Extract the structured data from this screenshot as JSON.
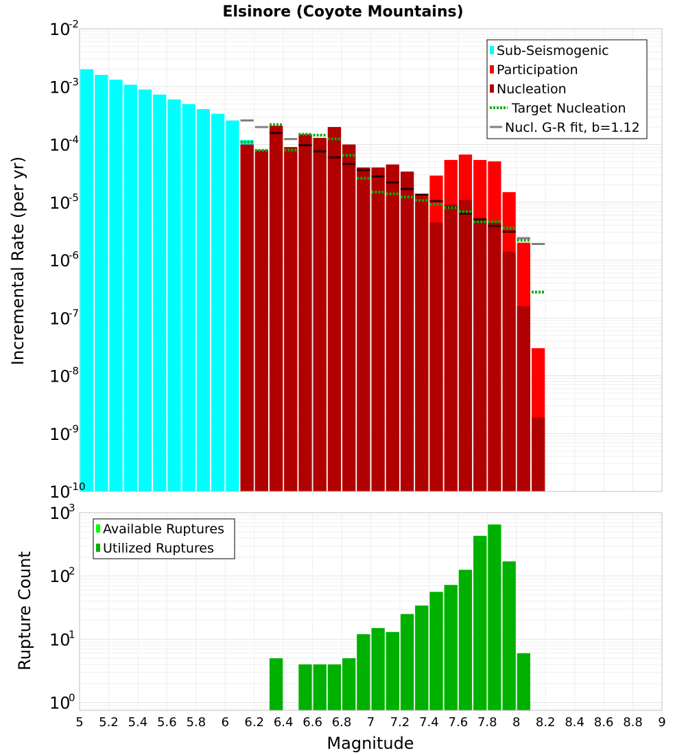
{
  "chart_data": [
    {
      "type": "bar",
      "title": "Elsinore (Coyote Mountains)",
      "xlabel": "",
      "ylabel": "Incremental Rate (per yr)",
      "xlim": [
        5,
        9
      ],
      "ylim": [
        1e-10,
        0.01
      ],
      "yscale": "log",
      "bin_width": 0.1,
      "y_ticks": [
        {
          "base": "10",
          "exp": "-10",
          "value": 1e-10
        },
        {
          "base": "10",
          "exp": "-9",
          "value": 1e-09
        },
        {
          "base": "10",
          "exp": "-8",
          "value": 1e-08
        },
        {
          "base": "10",
          "exp": "-7",
          "value": 1e-07
        },
        {
          "base": "10",
          "exp": "-6",
          "value": 1e-06
        },
        {
          "base": "10",
          "exp": "-5",
          "value": 1e-05
        },
        {
          "base": "10",
          "exp": "-4",
          "value": 0.0001
        },
        {
          "base": "10",
          "exp": "-3",
          "value": 0.001
        },
        {
          "base": "10",
          "exp": "-2",
          "value": 0.01
        }
      ],
      "legend": {
        "placement": "top-right",
        "entries": [
          {
            "label": "Sub-Seismogenic",
            "color": "#00FFFF",
            "style": "bar"
          },
          {
            "label": "Participation",
            "color": "#FF0000",
            "style": "bar"
          },
          {
            "label": "Nucleation",
            "color": "#B00000",
            "style": "bar"
          },
          {
            "label": "Target Nucleation",
            "color": "#00B000",
            "style": "dotted"
          },
          {
            "label": "Nucl. G-R fit, b=1.12",
            "color": "#808080",
            "style": "line"
          }
        ]
      },
      "series": [
        {
          "name": "Sub-Seismogenic",
          "color": "#00FFFF",
          "x": [
            5.05,
            5.15,
            5.25,
            5.35,
            5.45,
            5.55,
            5.65,
            5.75,
            5.85,
            5.95,
            6.05,
            6.15
          ],
          "values": [
            0.002,
            0.0016,
            0.00132,
            0.00108,
            0.00089,
            0.00073,
            0.0006,
            0.0005,
            0.00041,
            0.00034,
            0.00026,
            0.00012
          ]
        },
        {
          "name": "Participation",
          "color": "#FF0000",
          "x": [
            6.15,
            6.25,
            6.35,
            6.45,
            6.55,
            6.65,
            6.75,
            6.85,
            6.95,
            7.05,
            7.15,
            7.25,
            7.35,
            7.45,
            7.55,
            7.65,
            7.75,
            7.85,
            7.95,
            8.05,
            8.15
          ],
          "values": [
            0.0001,
            8e-05,
            0.00021,
            9e-05,
            0.00015,
            0.00013,
            0.0002,
            0.0001,
            4e-05,
            4e-05,
            4.5e-05,
            3.4e-05,
            1.4e-05,
            2.9e-05,
            5.4e-05,
            6.7e-05,
            5.4e-05,
            5.1e-05,
            1.5e-05,
            2e-06,
            3e-08
          ]
        },
        {
          "name": "Nucleation",
          "color": "#B00000",
          "x": [
            6.15,
            6.25,
            6.35,
            6.45,
            6.55,
            6.65,
            6.75,
            6.85,
            6.95,
            7.05,
            7.15,
            7.25,
            7.35,
            7.45,
            7.55,
            7.65,
            7.75,
            7.85,
            7.95,
            8.05,
            8.15
          ],
          "values": [
            0.0001,
            8e-05,
            0.00021,
            9e-05,
            0.00015,
            0.00013,
            0.0002,
            0.0001,
            4e-05,
            4e-05,
            4.5e-05,
            3.4e-05,
            1.25e-05,
            4.5e-06,
            9.2e-06,
            1.1e-05,
            5.4e-06,
            4.5e-06,
            1.4e-06,
            1.6e-07,
            1.9e-09
          ]
        },
        {
          "name": "Target Nucleation",
          "color": "#00B000",
          "style": "dotted",
          "x": [
            6.15,
            6.25,
            6.35,
            6.45,
            6.55,
            6.65,
            6.75,
            6.85,
            6.95,
            7.05,
            7.15,
            7.25,
            7.35,
            7.45,
            7.55,
            7.65,
            7.75,
            7.85,
            7.95,
            8.05,
            8.15
          ],
          "values": [
            0.00011,
            7.9e-05,
            0.00022,
            8e-05,
            0.00015,
            0.000145,
            0.000125,
            6.5e-05,
            2.6e-05,
            1.5e-05,
            1.4e-05,
            1.23e-05,
            1.08e-05,
            9.2e-06,
            8.1e-06,
            6.9e-06,
            4.6e-06,
            4.6e-06,
            3.6e-06,
            2.2e-06,
            2.8e-07
          ]
        },
        {
          "name": "Nucl. G-R fit, b=1.12",
          "color": "#808080",
          "style": "line",
          "x": [
            6.15,
            6.25,
            6.35,
            6.45,
            6.55,
            6.65,
            6.75,
            6.85,
            6.95,
            7.05,
            7.15,
            7.25,
            7.35,
            7.45,
            7.55,
            7.65,
            7.75,
            7.85,
            7.95,
            8.05,
            8.15
          ],
          "values": [
            0.00026,
            0.0002,
            0.000158,
            0.000124,
            9.7e-05,
            7.6e-05,
            6e-05,
            4.6e-05,
            3.6e-05,
            2.8e-05,
            2.2e-05,
            1.7e-05,
            1.35e-05,
            1.05e-05,
            8.2e-06,
            6.4e-06,
            5e-06,
            3.9e-06,
            3.1e-06,
            2.4e-06,
            1.9e-06
          ]
        }
      ]
    },
    {
      "type": "bar",
      "title": "",
      "xlabel": "Magnitude",
      "ylabel": "Rupture Count",
      "xlim": [
        5,
        9
      ],
      "ylim": [
        0.75,
        1000
      ],
      "yscale": "log",
      "bin_width": 0.1,
      "x_ticks": [
        "5",
        "5.2",
        "5.4",
        "5.6",
        "5.8",
        "6",
        "6.2",
        "6.4",
        "6.6",
        "6.8",
        "7",
        "7.2",
        "7.4",
        "7.6",
        "7.8",
        "8",
        "8.2",
        "8.4",
        "8.6",
        "8.8",
        "9"
      ],
      "y_ticks": [
        {
          "base": "10",
          "exp": "0",
          "value": 1
        },
        {
          "base": "10",
          "exp": "1",
          "value": 10
        },
        {
          "base": "10",
          "exp": "2",
          "value": 100
        },
        {
          "base": "10",
          "exp": "3",
          "value": 1000
        }
      ],
      "legend": {
        "placement": "top-left",
        "entries": [
          {
            "label": "Available Ruptures",
            "color": "#00FF00",
            "style": "bar"
          },
          {
            "label": "Utilized Ruptures",
            "color": "#00B000",
            "style": "bar"
          }
        ]
      },
      "series": [
        {
          "name": "Available Ruptures",
          "color": "#00FF00",
          "x": [
            6.35,
            6.55,
            6.65,
            6.75,
            6.85,
            6.95,
            7.05,
            7.15,
            7.25,
            7.35,
            7.45,
            7.55,
            7.65,
            7.75,
            7.85,
            7.95,
            8.05
          ],
          "values": [
            5,
            4,
            4,
            4,
            5,
            12,
            15,
            13,
            25,
            34,
            56,
            72,
            125,
            430,
            650,
            170,
            6
          ]
        },
        {
          "name": "Utilized Ruptures",
          "color": "#00B000",
          "x": [
            6.35,
            6.55,
            6.65,
            6.75,
            6.85,
            6.95,
            7.05,
            7.15,
            7.25,
            7.35,
            7.45,
            7.55,
            7.65,
            7.75,
            7.85,
            7.95,
            8.05
          ],
          "values": [
            5,
            4,
            4,
            4,
            5,
            12,
            15,
            13,
            25,
            34,
            56,
            72,
            125,
            430,
            650,
            170,
            6
          ]
        }
      ]
    }
  ]
}
